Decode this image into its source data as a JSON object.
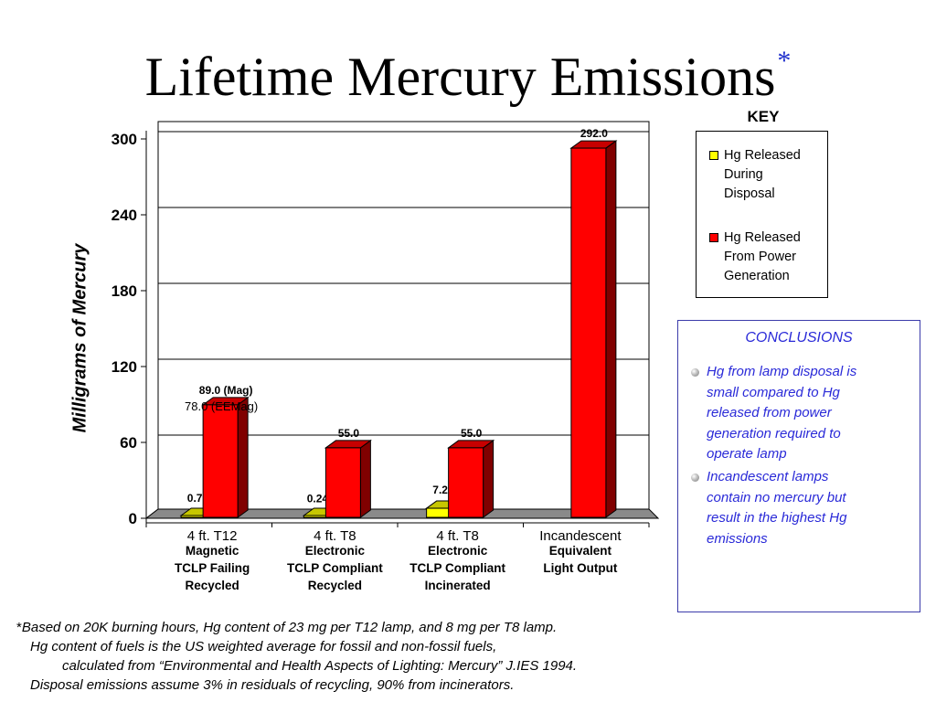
{
  "title": {
    "text": "Lifetime Mercury Emissions",
    "asterisk": "*"
  },
  "chart_data": {
    "type": "bar",
    "ylabel": "Milligrams of Mercury",
    "ylim": [
      0,
      300
    ],
    "yticks": [
      0,
      60,
      120,
      180,
      240,
      300
    ],
    "gridlines": true,
    "categories": [
      {
        "title": "4 ft. T12",
        "subtitle": [
          "Magnetic",
          "TCLP Failing",
          "Recycled"
        ]
      },
      {
        "title": "4 ft. T8",
        "subtitle": [
          "Electronic",
          "TCLP Compliant",
          "Recycled"
        ]
      },
      {
        "title": "4 ft. T8",
        "subtitle": [
          "Electronic",
          "TCLP Compliant",
          "Incinerated"
        ]
      },
      {
        "title": "Incandescent",
        "subtitle": [
          "Equivalent",
          "Light Output"
        ]
      }
    ],
    "series": [
      {
        "name": "Hg Released During Disposal",
        "color": "#ffff00",
        "values": [
          0.7,
          0.24,
          7.2,
          0
        ],
        "labels": [
          "0.7",
          "0.24",
          "7.2",
          ""
        ]
      },
      {
        "name": "Hg Released From Power Generation",
        "color": "#ff0000",
        "values": [
          89.0,
          55.0,
          55.0,
          292.0
        ],
        "labels": [
          "89.0 (Mag)",
          "55.0",
          "55.0",
          "292.0"
        ]
      }
    ],
    "extra_label": {
      "category": 0,
      "text": "78.0 (EEMag)"
    }
  },
  "key": {
    "title": "KEY",
    "items": [
      {
        "lines": [
          "Hg Released",
          "During",
          "Disposal"
        ],
        "color": "#ffff00"
      },
      {
        "lines": [
          "Hg Released",
          "From Power",
          "Generation"
        ],
        "color": "#ff0000"
      }
    ]
  },
  "conclusions": {
    "title": "CONCLUSIONS",
    "items": [
      {
        "lines": [
          "Hg from lamp disposal is",
          "small compared to Hg",
          "released from power",
          "generation required to",
          "operate lamp"
        ]
      },
      {
        "lines": [
          "Incandescent lamps",
          "contain no mercury but",
          "result in the highest Hg",
          "emissions"
        ]
      }
    ]
  },
  "footnote": {
    "asterisk": "*",
    "lines": [
      "Based on 20K burning hours, Hg content of 23 mg per T12 lamp, and 8 mg per T8 lamp.",
      "Hg content of fuels is the US weighted average for fossil and non-fossil fuels,",
      "calculated from “Environmental and Health Aspects of Lighting: Mercury”  J.IES 1994.",
      "Disposal emissions assume 3%  in residuals of recycling, 90%  from incinerators."
    ]
  }
}
